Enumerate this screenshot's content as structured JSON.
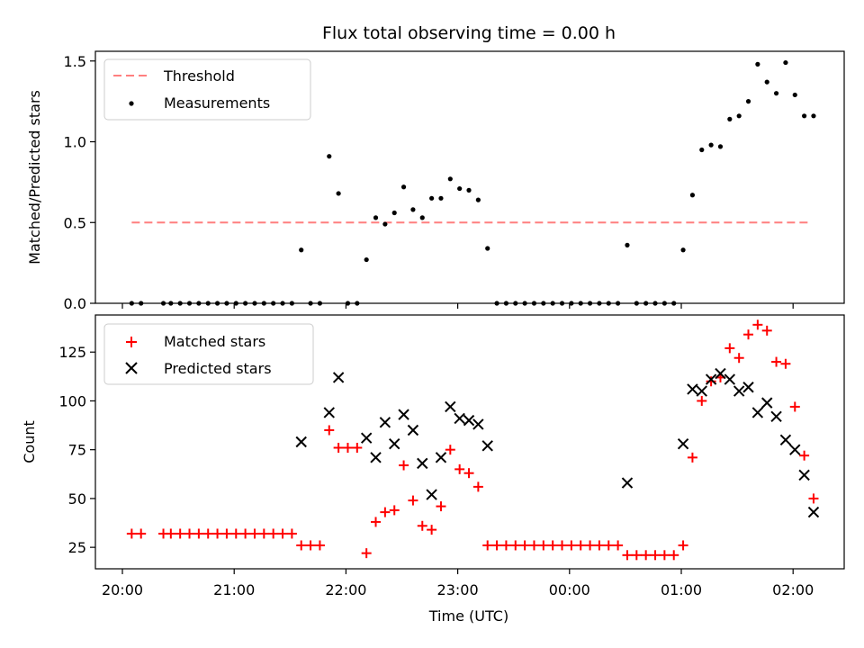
{
  "chart_data": [
    {
      "type": "scatter",
      "title": "Flux total observing time = 0.00 h",
      "ylabel": "Matched/Predicted stars",
      "ylim": [
        0,
        1.56
      ],
      "yticks": [
        0.0,
        0.5,
        1.0,
        1.5
      ],
      "ytick_labels": [
        "0.0",
        "0.5",
        "1.0",
        "1.5"
      ],
      "grid": false,
      "legend": "top-left",
      "threshold": {
        "name": "Threshold",
        "value": 0.5,
        "x_range": [
          "20:05",
          "02:10"
        ],
        "color": "#ff7f7f"
      },
      "series": [
        {
          "name": "Measurements",
          "color": "#000000",
          "marker": "dot",
          "points": [
            [
              "20:05",
              0
            ],
            [
              "20:10",
              0
            ],
            [
              "20:22",
              0
            ],
            [
              "20:26",
              0
            ],
            [
              "20:31",
              0
            ],
            [
              "20:36",
              0
            ],
            [
              "20:41",
              0
            ],
            [
              "20:46",
              0
            ],
            [
              "20:51",
              0
            ],
            [
              "20:56",
              0
            ],
            [
              "21:01",
              0
            ],
            [
              "21:06",
              0
            ],
            [
              "21:11",
              0
            ],
            [
              "21:16",
              0
            ],
            [
              "21:21",
              0
            ],
            [
              "21:26",
              0
            ],
            [
              "21:31",
              0
            ],
            [
              "21:36",
              0.33
            ],
            [
              "21:41",
              0
            ],
            [
              "21:46",
              0
            ],
            [
              "21:51",
              0.91
            ],
            [
              "21:56",
              0.68
            ],
            [
              "22:01",
              0
            ],
            [
              "22:06",
              0
            ],
            [
              "22:11",
              0.27
            ],
            [
              "22:16",
              0.53
            ],
            [
              "22:21",
              0.49
            ],
            [
              "22:26",
              0.56
            ],
            [
              "22:31",
              0.72
            ],
            [
              "22:36",
              0.58
            ],
            [
              "22:41",
              0.53
            ],
            [
              "22:46",
              0.65
            ],
            [
              "22:51",
              0.65
            ],
            [
              "22:56",
              0.77
            ],
            [
              "23:01",
              0.71
            ],
            [
              "23:06",
              0.7
            ],
            [
              "23:11",
              0.64
            ],
            [
              "23:16",
              0.34
            ],
            [
              "23:21",
              0
            ],
            [
              "23:26",
              0
            ],
            [
              "23:31",
              0
            ],
            [
              "23:36",
              0
            ],
            [
              "23:41",
              0
            ],
            [
              "23:46",
              0
            ],
            [
              "23:51",
              0
            ],
            [
              "23:56",
              0
            ],
            [
              "00:01",
              0
            ],
            [
              "00:06",
              0
            ],
            [
              "00:11",
              0
            ],
            [
              "00:16",
              0
            ],
            [
              "00:21",
              0
            ],
            [
              "00:26",
              0
            ],
            [
              "00:31",
              0.36
            ],
            [
              "00:36",
              0
            ],
            [
              "00:41",
              0
            ],
            [
              "00:46",
              0
            ],
            [
              "00:51",
              0
            ],
            [
              "00:56",
              0
            ],
            [
              "01:01",
              0.33
            ],
            [
              "01:06",
              0.67
            ],
            [
              "01:11",
              0.95
            ],
            [
              "01:16",
              0.98
            ],
            [
              "01:21",
              0.97
            ],
            [
              "01:26",
              1.14
            ],
            [
              "01:31",
              1.16
            ],
            [
              "01:36",
              1.25
            ],
            [
              "01:41",
              1.48
            ],
            [
              "01:46",
              1.37
            ],
            [
              "01:51",
              1.3
            ],
            [
              "01:56",
              1.49
            ],
            [
              "02:01",
              1.29
            ],
            [
              "02:06",
              1.16
            ],
            [
              "02:11",
              1.16
            ]
          ]
        }
      ]
    },
    {
      "type": "scatter",
      "xlabel": "Time (UTC)",
      "ylabel": "Count",
      "ylim": [
        14,
        144
      ],
      "yticks": [
        25,
        50,
        75,
        100,
        125
      ],
      "ytick_labels": [
        "25",
        "50",
        "75",
        "100",
        "125"
      ],
      "xticks": [
        "20:00",
        "21:00",
        "22:00",
        "23:00",
        "00:00",
        "01:00",
        "02:00"
      ],
      "xtick_labels": [
        "20:00",
        "21:00",
        "22:00",
        "23:00",
        "00:00",
        "01:00",
        "02:00"
      ],
      "grid": false,
      "legend": "top-left",
      "series": [
        {
          "name": "Matched stars",
          "color": "#ff0000",
          "marker": "plus",
          "points": [
            [
              "20:05",
              32
            ],
            [
              "20:10",
              32
            ],
            [
              "20:22",
              32
            ],
            [
              "20:26",
              32
            ],
            [
              "20:31",
              32
            ],
            [
              "20:36",
              32
            ],
            [
              "20:41",
              32
            ],
            [
              "20:46",
              32
            ],
            [
              "20:51",
              32
            ],
            [
              "20:56",
              32
            ],
            [
              "21:01",
              32
            ],
            [
              "21:06",
              32
            ],
            [
              "21:11",
              32
            ],
            [
              "21:16",
              32
            ],
            [
              "21:21",
              32
            ],
            [
              "21:26",
              32
            ],
            [
              "21:31",
              32
            ],
            [
              "21:36",
              26
            ],
            [
              "21:41",
              26
            ],
            [
              "21:46",
              26
            ],
            [
              "21:51",
              85
            ],
            [
              "21:56",
              76
            ],
            [
              "22:01",
              76
            ],
            [
              "22:06",
              76
            ],
            [
              "22:11",
              22
            ],
            [
              "22:16",
              38
            ],
            [
              "22:21",
              43
            ],
            [
              "22:26",
              44
            ],
            [
              "22:31",
              67
            ],
            [
              "22:36",
              49
            ],
            [
              "22:41",
              36
            ],
            [
              "22:46",
              34
            ],
            [
              "22:51",
              46
            ],
            [
              "22:56",
              75
            ],
            [
              "23:01",
              65
            ],
            [
              "23:06",
              63
            ],
            [
              "23:11",
              56
            ],
            [
              "23:16",
              26
            ],
            [
              "23:21",
              26
            ],
            [
              "23:26",
              26
            ],
            [
              "23:31",
              26
            ],
            [
              "23:36",
              26
            ],
            [
              "23:41",
              26
            ],
            [
              "23:46",
              26
            ],
            [
              "23:51",
              26
            ],
            [
              "23:56",
              26
            ],
            [
              "00:01",
              26
            ],
            [
              "00:06",
              26
            ],
            [
              "00:11",
              26
            ],
            [
              "00:16",
              26
            ],
            [
              "00:21",
              26
            ],
            [
              "00:26",
              26
            ],
            [
              "00:31",
              21
            ],
            [
              "00:36",
              21
            ],
            [
              "00:41",
              21
            ],
            [
              "00:46",
              21
            ],
            [
              "00:51",
              21
            ],
            [
              "00:56",
              21
            ],
            [
              "01:01",
              26
            ],
            [
              "01:06",
              71
            ],
            [
              "01:11",
              100
            ],
            [
              "01:16",
              110
            ],
            [
              "01:21",
              112
            ],
            [
              "01:26",
              127
            ],
            [
              "01:31",
              122
            ],
            [
              "01:36",
              134
            ],
            [
              "01:41",
              139
            ],
            [
              "01:46",
              136
            ],
            [
              "01:51",
              120
            ],
            [
              "01:56",
              119
            ],
            [
              "02:01",
              97
            ],
            [
              "02:06",
              72
            ],
            [
              "02:11",
              50
            ]
          ]
        },
        {
          "name": "Predicted stars",
          "color": "#000000",
          "marker": "x",
          "points": [
            [
              "21:36",
              79
            ],
            [
              "21:51",
              94
            ],
            [
              "21:56",
              112
            ],
            [
              "22:11",
              81
            ],
            [
              "22:16",
              71
            ],
            [
              "22:21",
              89
            ],
            [
              "22:26",
              78
            ],
            [
              "22:31",
              93
            ],
            [
              "22:36",
              85
            ],
            [
              "22:41",
              68
            ],
            [
              "22:46",
              52
            ],
            [
              "22:51",
              71
            ],
            [
              "22:56",
              97
            ],
            [
              "23:01",
              91
            ],
            [
              "23:06",
              90
            ],
            [
              "23:11",
              88
            ],
            [
              "23:16",
              77
            ],
            [
              "00:31",
              58
            ],
            [
              "01:01",
              78
            ],
            [
              "01:06",
              106
            ],
            [
              "01:11",
              105
            ],
            [
              "01:16",
              111
            ],
            [
              "01:21",
              114
            ],
            [
              "01:26",
              111
            ],
            [
              "01:31",
              105
            ],
            [
              "01:36",
              107
            ],
            [
              "01:41",
              94
            ],
            [
              "01:46",
              99
            ],
            [
              "01:51",
              92
            ],
            [
              "01:56",
              80
            ],
            [
              "02:01",
              75
            ],
            [
              "02:06",
              62
            ],
            [
              "02:11",
              43
            ]
          ]
        }
      ]
    }
  ]
}
